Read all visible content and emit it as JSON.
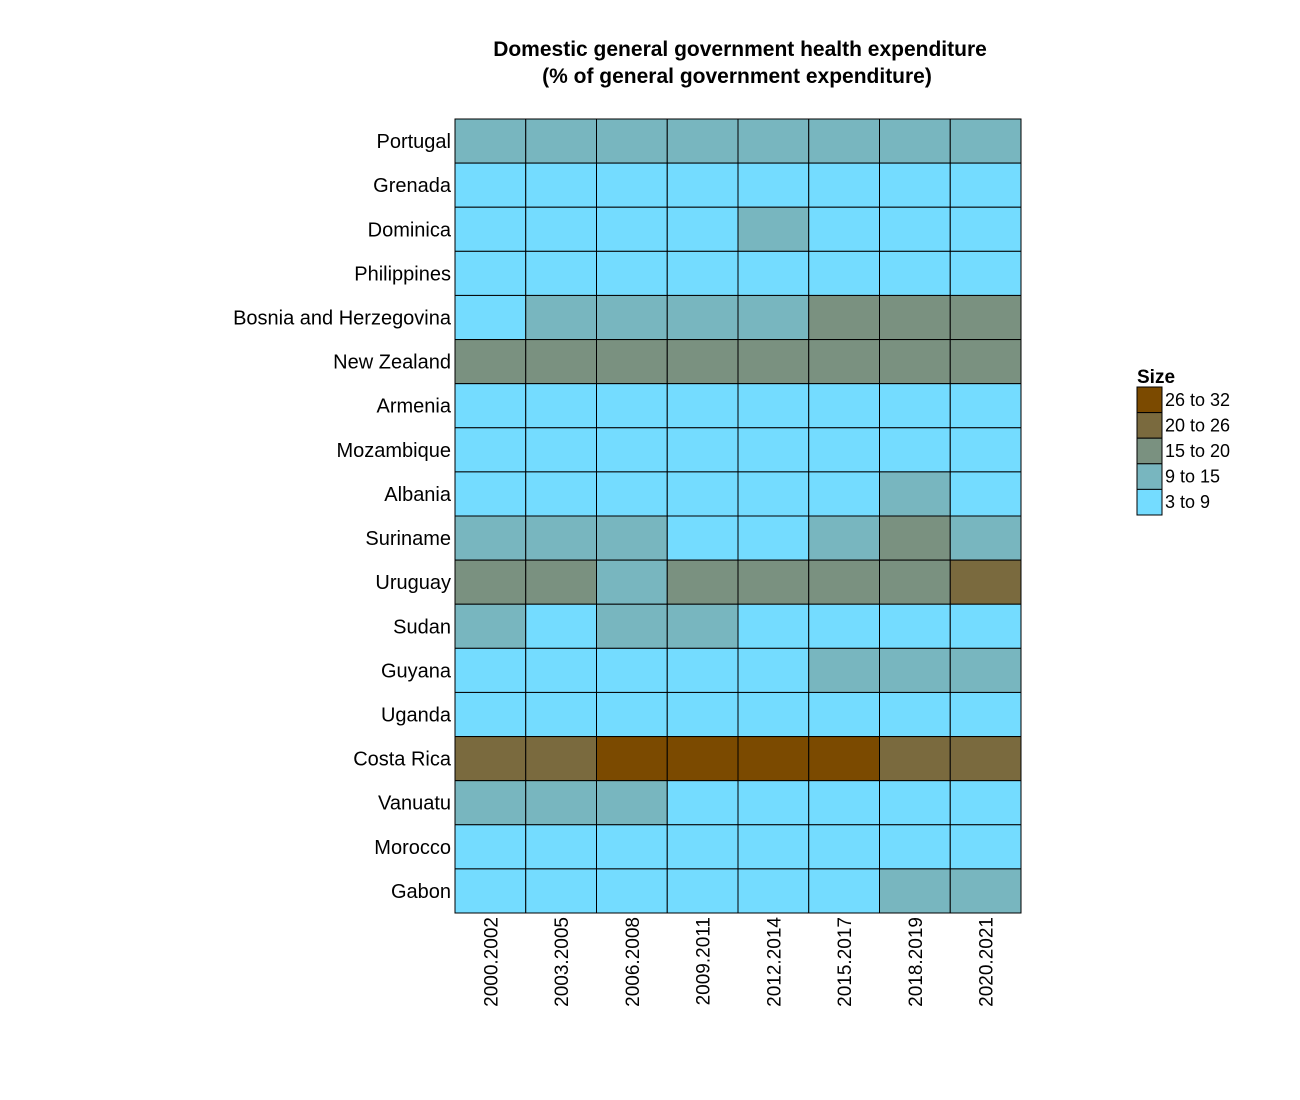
{
  "chart_data": {
    "type": "heatmap",
    "title_lines": [
      "Domestic general government health expenditure",
      "(% of general government expenditure)"
    ],
    "x": [
      "2000.2002",
      "2003.2005",
      "2006.2008",
      "2009.2011",
      "2012.2014",
      "2015.2017",
      "2018.2019",
      "2020.2021"
    ],
    "y": [
      "Portugal",
      "Grenada",
      "Dominica",
      "Philippines",
      "Bosnia and Herzegovina",
      "New Zealand",
      "Armenia",
      "Mozambique",
      "Albania",
      "Suriname",
      "Uruguay",
      "Sudan",
      "Guyana",
      "Uganda",
      "Costa Rica",
      "Vanuatu",
      "Morocco",
      "Gabon"
    ],
    "legend": {
      "title": "Size",
      "bins": [
        {
          "label": "26 to 32",
          "color": "#7B4A00"
        },
        {
          "label": "20 to 26",
          "color": "#7A6A3E"
        },
        {
          "label": "15 to 20",
          "color": "#7A9180"
        },
        {
          "label": "9 to 15",
          "color": "#78B6BF"
        },
        {
          "label": "3 to 9",
          "color": "#74DCFF"
        }
      ]
    },
    "cell_bins": [
      [
        "9 to 15",
        "9 to 15",
        "9 to 15",
        "9 to 15",
        "9 to 15",
        "9 to 15",
        "9 to 15",
        "9 to 15"
      ],
      [
        "3 to 9",
        "3 to 9",
        "3 to 9",
        "3 to 9",
        "3 to 9",
        "3 to 9",
        "3 to 9",
        "3 to 9"
      ],
      [
        "3 to 9",
        "3 to 9",
        "3 to 9",
        "3 to 9",
        "9 to 15",
        "3 to 9",
        "3 to 9",
        "3 to 9"
      ],
      [
        "3 to 9",
        "3 to 9",
        "3 to 9",
        "3 to 9",
        "3 to 9",
        "3 to 9",
        "3 to 9",
        "3 to 9"
      ],
      [
        "3 to 9",
        "9 to 15",
        "9 to 15",
        "9 to 15",
        "9 to 15",
        "15 to 20",
        "15 to 20",
        "15 to 20"
      ],
      [
        "15 to 20",
        "15 to 20",
        "15 to 20",
        "15 to 20",
        "15 to 20",
        "15 to 20",
        "15 to 20",
        "15 to 20"
      ],
      [
        "3 to 9",
        "3 to 9",
        "3 to 9",
        "3 to 9",
        "3 to 9",
        "3 to 9",
        "3 to 9",
        "3 to 9"
      ],
      [
        "3 to 9",
        "3 to 9",
        "3 to 9",
        "3 to 9",
        "3 to 9",
        "3 to 9",
        "3 to 9",
        "3 to 9"
      ],
      [
        "3 to 9",
        "3 to 9",
        "3 to 9",
        "3 to 9",
        "3 to 9",
        "3 to 9",
        "9 to 15",
        "3 to 9"
      ],
      [
        "9 to 15",
        "9 to 15",
        "9 to 15",
        "3 to 9",
        "3 to 9",
        "9 to 15",
        "15 to 20",
        "9 to 15"
      ],
      [
        "15 to 20",
        "15 to 20",
        "9 to 15",
        "15 to 20",
        "15 to 20",
        "15 to 20",
        "15 to 20",
        "20 to 26"
      ],
      [
        "9 to 15",
        "3 to 9",
        "9 to 15",
        "9 to 15",
        "3 to 9",
        "3 to 9",
        "3 to 9",
        "3 to 9"
      ],
      [
        "3 to 9",
        "3 to 9",
        "3 to 9",
        "3 to 9",
        "3 to 9",
        "9 to 15",
        "9 to 15",
        "9 to 15"
      ],
      [
        "3 to 9",
        "3 to 9",
        "3 to 9",
        "3 to 9",
        "3 to 9",
        "3 to 9",
        "3 to 9",
        "3 to 9"
      ],
      [
        "20 to 26",
        "20 to 26",
        "26 to 32",
        "26 to 32",
        "26 to 32",
        "26 to 32",
        "20 to 26",
        "20 to 26"
      ],
      [
        "9 to 15",
        "9 to 15",
        "9 to 15",
        "3 to 9",
        "3 to 9",
        "3 to 9",
        "3 to 9",
        "3 to 9"
      ],
      [
        "3 to 9",
        "3 to 9",
        "3 to 9",
        "3 to 9",
        "3 to 9",
        "3 to 9",
        "3 to 9",
        "3 to 9"
      ],
      [
        "3 to 9",
        "3 to 9",
        "3 to 9",
        "3 to 9",
        "3 to 9",
        "3 to 9",
        "9 to 15",
        "9 to 15"
      ]
    ],
    "grid": false,
    "legend_position": "right"
  }
}
